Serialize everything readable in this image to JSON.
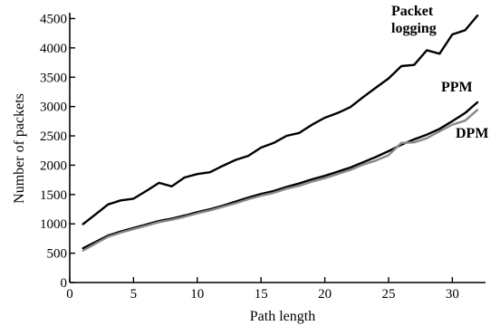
{
  "chart_data": {
    "type": "line",
    "title": "",
    "xlabel": "Path length",
    "ylabel": "Number of packets",
    "xlim": [
      0,
      32.6
    ],
    "ylim": [
      0,
      4600
    ],
    "xticks": [
      0,
      5,
      10,
      15,
      20,
      25,
      30
    ],
    "yticks": [
      0,
      500,
      1000,
      1500,
      2000,
      2500,
      3000,
      3500,
      4000,
      4500
    ],
    "grid": false,
    "legend": "inline labels at line ends",
    "x": [
      1,
      2,
      3,
      4,
      5,
      6,
      7,
      8,
      9,
      10,
      11,
      12,
      13,
      14,
      15,
      16,
      17,
      18,
      19,
      20,
      21,
      22,
      23,
      24,
      25,
      26,
      27,
      28,
      29,
      30,
      31,
      32
    ],
    "series": [
      {
        "name": "Packet logging",
        "label_lines": [
          "Packet",
          "logging"
        ],
        "color": "#000000",
        "values": [
          990,
          1160,
          1330,
          1400,
          1430,
          1560,
          1700,
          1640,
          1790,
          1850,
          1880,
          1990,
          2090,
          2160,
          2300,
          2380,
          2500,
          2550,
          2690,
          2810,
          2890,
          2990,
          3160,
          3320,
          3480,
          3690,
          3710,
          3960,
          3900,
          4230,
          4300,
          4560
        ]
      },
      {
        "name": "PPM",
        "label_lines": [
          "PPM"
        ],
        "color": "#000000",
        "values": [
          580,
          690,
          800,
          870,
          930,
          990,
          1050,
          1090,
          1140,
          1200,
          1250,
          1310,
          1380,
          1450,
          1510,
          1560,
          1630,
          1690,
          1760,
          1820,
          1890,
          1960,
          2050,
          2140,
          2240,
          2350,
          2440,
          2520,
          2620,
          2750,
          2890,
          3080
        ]
      },
      {
        "name": "DPM",
        "label_lines": [
          "DPM"
        ],
        "color": "#888888",
        "values": [
          540,
          660,
          780,
          850,
          910,
          970,
          1030,
          1070,
          1120,
          1180,
          1230,
          1290,
          1350,
          1420,
          1480,
          1530,
          1600,
          1650,
          1720,
          1780,
          1850,
          1920,
          2010,
          2080,
          2170,
          2380,
          2390,
          2460,
          2580,
          2690,
          2760,
          2950
        ]
      }
    ]
  }
}
